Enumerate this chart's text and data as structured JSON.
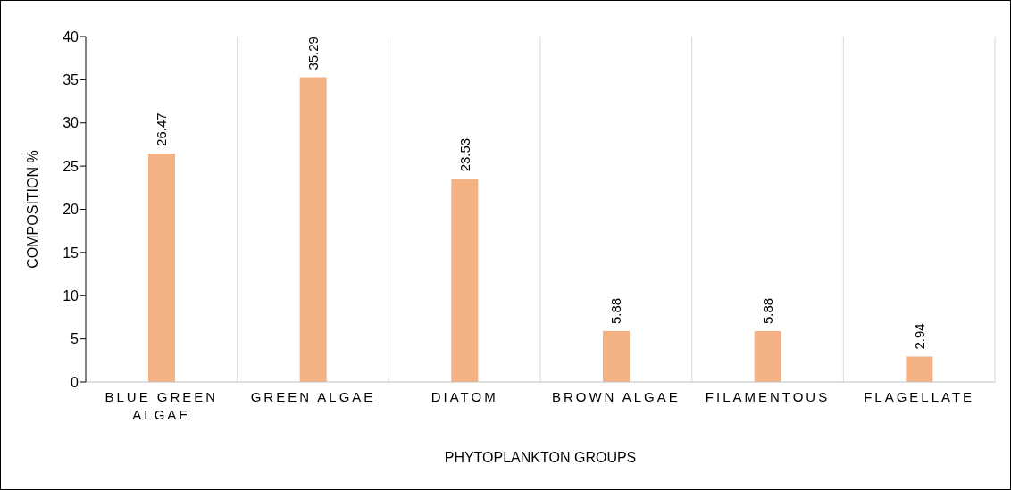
{
  "chart_data": {
    "type": "bar",
    "xlabel": "PHYTOPLANKTON GROUPS",
    "ylabel": "COMPOSITION %",
    "categories": [
      "BLUE GREEN ALGAE",
      "GREEN ALGAE",
      "DIATOM",
      "BROWN ALGAE",
      "FILAMENTOUS",
      "FLAGELLATE"
    ],
    "values": [
      26.47,
      35.29,
      23.53,
      5.88,
      5.88,
      2.94
    ],
    "color": "#f4b183",
    "ylim": [
      0,
      40
    ],
    "yticks": [
      0,
      5,
      10,
      15,
      20,
      25,
      30,
      35,
      40
    ],
    "grid": "x",
    "data_labels": true
  }
}
